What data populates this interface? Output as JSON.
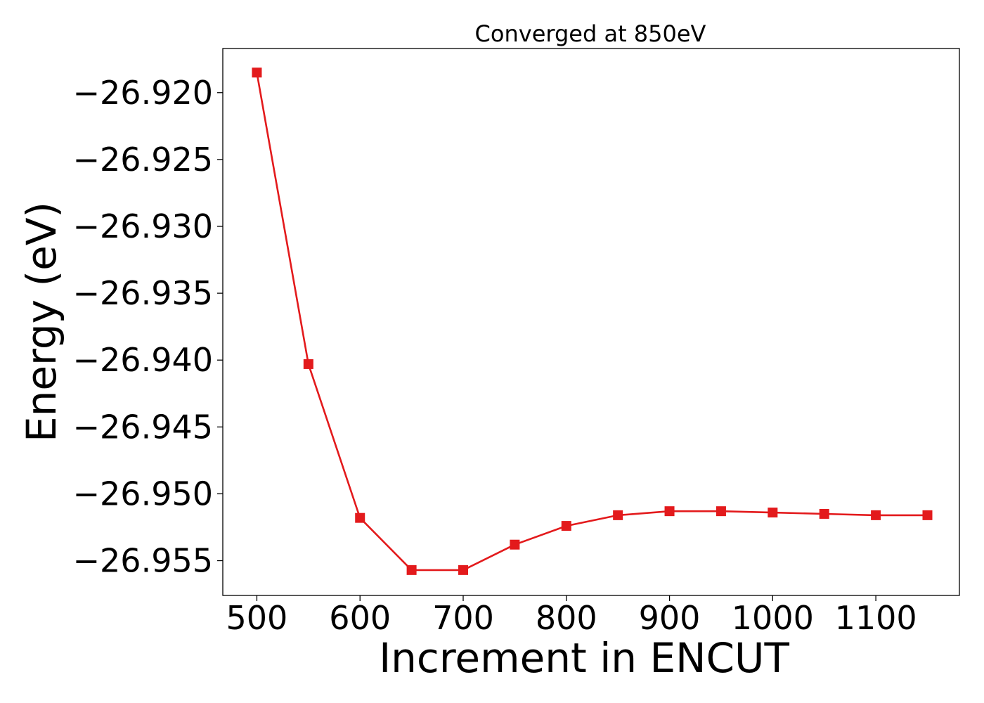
{
  "chart_data": {
    "type": "line",
    "title": "Converged at 850eV",
    "xlabel": "Increment in ENCUT",
    "ylabel": "Energy (eV)",
    "xlim": [
      467,
      1181
    ],
    "ylim": [
      -26.9576,
      -26.9167
    ],
    "x_ticks": [
      500,
      600,
      700,
      800,
      900,
      1000,
      1100
    ],
    "y_ticks": [
      -26.92,
      -26.925,
      -26.93,
      -26.935,
      -26.94,
      -26.945,
      -26.95,
      -26.955
    ],
    "grid": false,
    "legend": "none",
    "series": [
      {
        "color": "#e31a1c",
        "marker": "square",
        "x": [
          500,
          550,
          600,
          650,
          700,
          750,
          800,
          850,
          900,
          950,
          1000,
          1050,
          1100,
          1150
        ],
        "y": [
          -26.9185,
          -26.9403,
          -26.9518,
          -26.9557,
          -26.9557,
          -26.9538,
          -26.9524,
          -26.9516,
          -26.9513,
          -26.9513,
          -26.9514,
          -26.9515,
          -26.9516,
          -26.9516
        ]
      }
    ]
  }
}
